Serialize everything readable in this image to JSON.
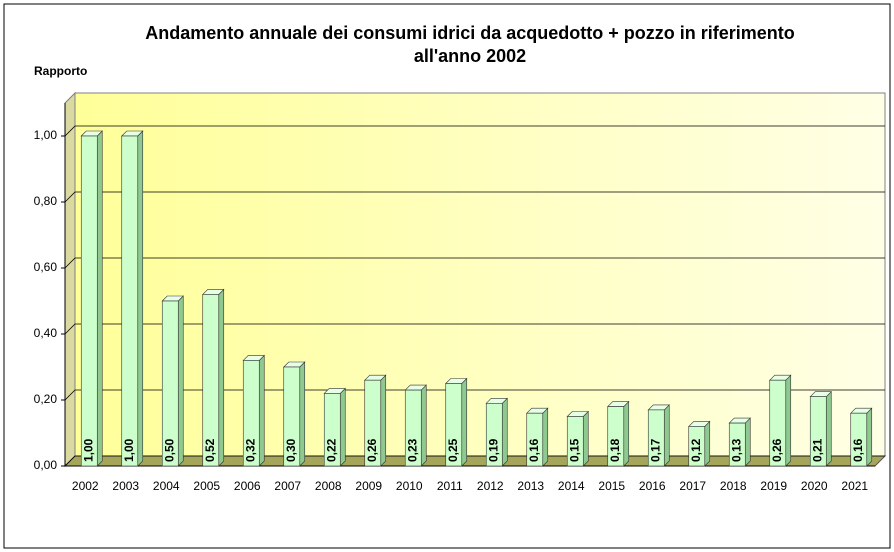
{
  "chart_data": {
    "type": "bar",
    "title": "Andamento annuale dei consumi idrici da acquedotto + pozzo in riferimento all'anno 2002",
    "y_label": "Rapporto",
    "categories": [
      "2002",
      "2003",
      "2004",
      "2005",
      "2006",
      "2007",
      "2008",
      "2009",
      "2010",
      "2011",
      "2012",
      "2013",
      "2014",
      "2015",
      "2016",
      "2017",
      "2018",
      "2019",
      "2020",
      "2021"
    ],
    "values": [
      1.0,
      1.0,
      0.5,
      0.52,
      0.32,
      0.3,
      0.22,
      0.26,
      0.23,
      0.25,
      0.19,
      0.16,
      0.15,
      0.18,
      0.17,
      0.12,
      0.13,
      0.26,
      0.21,
      0.16
    ],
    "value_labels": [
      "1,00",
      "1,00",
      "0,50",
      "0,52",
      "0,32",
      "0,30",
      "0,22",
      "0,26",
      "0,23",
      "0,25",
      "0,19",
      "0,16",
      "0,15",
      "0,18",
      "0,17",
      "0,12",
      "0,13",
      "0,26",
      "0,21",
      "0,16"
    ],
    "color": "#ccffcc",
    "ylim": [
      0,
      1.1
    ],
    "yticks": [
      {
        "value": 0,
        "label": "0,00"
      },
      {
        "value": 0.2,
        "label": "0,20"
      },
      {
        "value": 0.4,
        "label": "0,40"
      },
      {
        "value": 0.6,
        "label": "0,60"
      },
      {
        "value": 0.8,
        "label": "0,80"
      },
      {
        "value": 1.0,
        "label": "1,00"
      }
    ],
    "grid": true
  }
}
